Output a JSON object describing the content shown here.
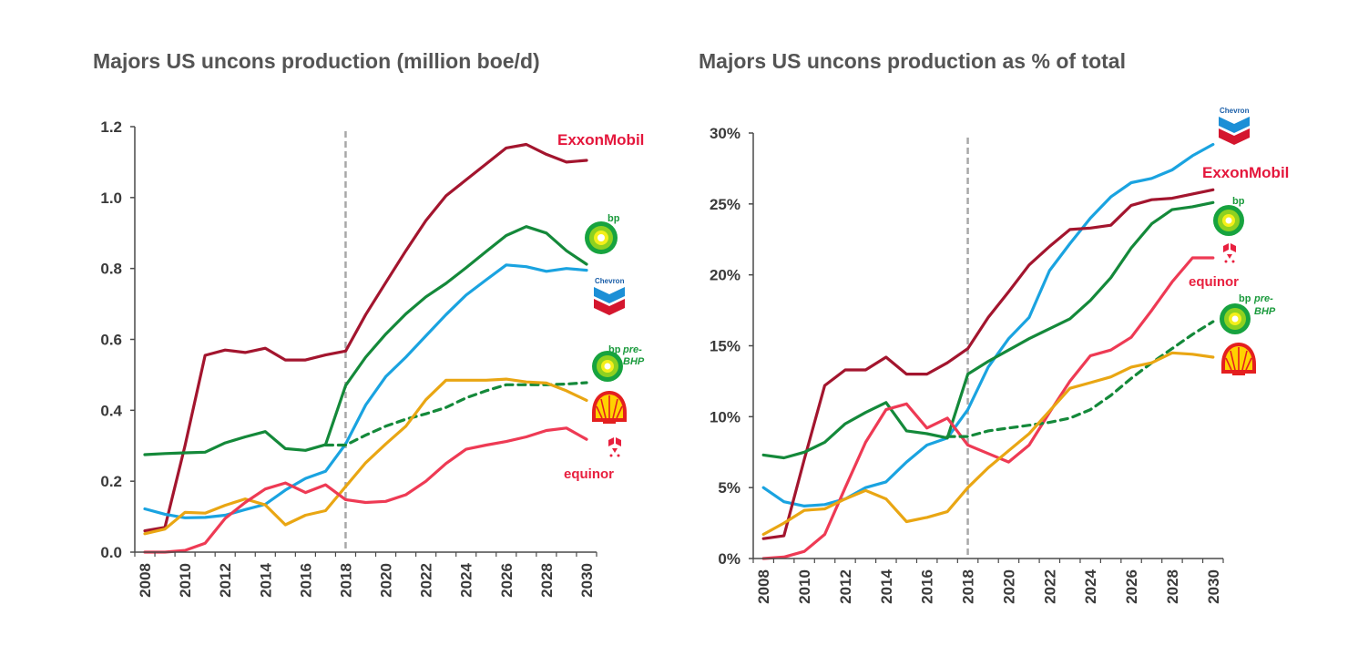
{
  "chart_data": [
    {
      "type": "line",
      "title": "Majors US uncons production (million boe/d)",
      "xlabel": "",
      "ylabel": "",
      "x": [
        2008,
        2009,
        2010,
        2011,
        2012,
        2013,
        2014,
        2015,
        2016,
        2017,
        2018,
        2019,
        2020,
        2021,
        2022,
        2023,
        2024,
        2025,
        2026,
        2027,
        2028,
        2029,
        2030
      ],
      "xticks": [
        "2008",
        "2010",
        "2012",
        "2014",
        "2016",
        "2018",
        "2020",
        "2022",
        "2024",
        "2026",
        "2028",
        "2030"
      ],
      "ylim": [
        0,
        1.2
      ],
      "yticks": [
        "0.0",
        "0.2",
        "0.4",
        "0.6",
        "0.8",
        "1.0",
        "1.2"
      ],
      "forecast_start": 2018,
      "series": [
        {
          "name": "ExxonMobil",
          "color": "#a3152e",
          "dashed": false,
          "values": [
            0.06,
            0.07,
            0.3,
            0.555,
            0.57,
            0.563,
            0.575,
            0.542,
            0.542,
            0.556,
            0.567,
            0.67,
            0.76,
            0.85,
            0.935,
            1.005,
            1.05,
            1.095,
            1.14,
            1.15,
            1.122,
            1.1,
            1.105
          ]
        },
        {
          "name": "bp",
          "color": "#14893a",
          "dashed": false,
          "values": [
            0.275,
            0.278,
            0.28,
            0.282,
            0.308,
            0.325,
            0.34,
            0.292,
            0.287,
            0.303,
            0.47,
            0.55,
            0.615,
            0.672,
            0.72,
            0.758,
            0.802,
            0.848,
            0.893,
            0.918,
            0.9,
            0.85,
            0.812
          ]
        },
        {
          "name": "Chevron",
          "color": "#1aa3e0",
          "dashed": false,
          "values": [
            0.122,
            0.107,
            0.097,
            0.098,
            0.104,
            0.12,
            0.135,
            0.175,
            0.208,
            0.228,
            0.305,
            0.415,
            0.495,
            0.55,
            0.61,
            0.67,
            0.725,
            0.768,
            0.81,
            0.805,
            0.792,
            0.8,
            0.795
          ]
        },
        {
          "name": "bp pre-BHP",
          "color": "#14893a",
          "dashed": true,
          "values": [
            null,
            null,
            null,
            null,
            null,
            null,
            null,
            null,
            null,
            0.302,
            0.302,
            0.33,
            0.355,
            0.375,
            0.39,
            0.408,
            0.435,
            0.455,
            0.472,
            0.472,
            0.472,
            0.474,
            0.478
          ]
        },
        {
          "name": "Shell",
          "color": "#e9a613",
          "dashed": false,
          "values": [
            0.052,
            0.065,
            0.112,
            0.11,
            0.132,
            0.15,
            0.133,
            0.077,
            0.104,
            0.117,
            0.185,
            0.252,
            0.305,
            0.355,
            0.43,
            0.485,
            0.485,
            0.485,
            0.488,
            0.48,
            0.477,
            0.455,
            0.428
          ]
        },
        {
          "name": "equinor",
          "color": "#ee3a54",
          "dashed": false,
          "values": [
            0.0,
            0.0,
            0.005,
            0.025,
            0.095,
            0.14,
            0.178,
            0.195,
            0.168,
            0.19,
            0.148,
            0.14,
            0.143,
            0.162,
            0.2,
            0.25,
            0.29,
            0.302,
            0.312,
            0.325,
            0.343,
            0.35,
            0.318
          ]
        }
      ]
    },
    {
      "type": "line",
      "title": "Majors US uncons production as % of total",
      "xlabel": "",
      "ylabel": "",
      "x": [
        2008,
        2009,
        2010,
        2011,
        2012,
        2013,
        2014,
        2015,
        2016,
        2017,
        2018,
        2019,
        2020,
        2021,
        2022,
        2023,
        2024,
        2025,
        2026,
        2027,
        2028,
        2029,
        2030
      ],
      "xticks": [
        "2008",
        "2010",
        "2012",
        "2014",
        "2016",
        "2018",
        "2020",
        "2022",
        "2024",
        "2026",
        "2028",
        "2030"
      ],
      "ylim": [
        0,
        30
      ],
      "yticks": [
        "0%",
        "5%",
        "10%",
        "15%",
        "20%",
        "25%",
        "30%"
      ],
      "forecast_start": 2018,
      "series": [
        {
          "name": "Chevron",
          "color": "#1aa3e0",
          "dashed": false,
          "values": [
            5.0,
            4.0,
            3.7,
            3.8,
            4.2,
            5.0,
            5.4,
            6.8,
            8.0,
            8.5,
            10.5,
            13.5,
            15.5,
            17.0,
            20.3,
            22.2,
            24.0,
            25.5,
            26.5,
            26.8,
            27.4,
            28.4,
            29.2
          ]
        },
        {
          "name": "ExxonMobil",
          "color": "#a3152e",
          "dashed": false,
          "values": [
            1.4,
            1.6,
            7.0,
            12.2,
            13.3,
            13.3,
            14.2,
            13.0,
            13.0,
            13.8,
            14.8,
            17.0,
            18.8,
            20.7,
            22.0,
            23.2,
            23.3,
            23.5,
            24.9,
            25.3,
            25.4,
            25.7,
            26.0
          ]
        },
        {
          "name": "bp",
          "color": "#14893a",
          "dashed": false,
          "values": [
            7.3,
            7.1,
            7.5,
            8.2,
            9.5,
            10.3,
            11.0,
            9.0,
            8.8,
            8.5,
            13.0,
            13.9,
            14.7,
            15.5,
            16.2,
            16.9,
            18.2,
            19.8,
            21.9,
            23.6,
            24.6,
            24.8,
            25.1
          ]
        },
        {
          "name": "equinor",
          "color": "#ee3a54",
          "dashed": false,
          "values": [
            0.0,
            0.1,
            0.5,
            1.7,
            5.0,
            8.2,
            10.5,
            10.9,
            9.2,
            9.9,
            8.0,
            7.4,
            6.8,
            8.0,
            10.3,
            12.5,
            14.3,
            14.7,
            15.6,
            17.5,
            19.5,
            21.2,
            21.2
          ]
        },
        {
          "name": "bp pre-BHP",
          "color": "#14893a",
          "dashed": true,
          "values": [
            null,
            null,
            null,
            null,
            null,
            null,
            null,
            null,
            null,
            8.6,
            8.6,
            9.0,
            9.2,
            9.4,
            9.6,
            9.9,
            10.5,
            11.5,
            12.7,
            13.8,
            14.8,
            15.8,
            16.7
          ]
        },
        {
          "name": "Shell",
          "color": "#e9a613",
          "dashed": false,
          "values": [
            1.7,
            2.5,
            3.4,
            3.5,
            4.2,
            4.8,
            4.2,
            2.6,
            2.9,
            3.3,
            5.0,
            6.4,
            7.6,
            8.8,
            10.4,
            12.0,
            12.4,
            12.8,
            13.5,
            13.8,
            14.5,
            14.4,
            14.2
          ]
        }
      ]
    }
  ],
  "logos": {
    "left": {
      "exxonmobil": "ExxonMobil",
      "bp": "bp",
      "chevron": "Chevron",
      "bp_pre": "bp",
      "bp_pre_label_1": "pre-",
      "bp_pre_label_2": "BHP",
      "equinor": "equinor"
    },
    "right": {
      "chevron": "Chevron",
      "exxonmobil": "ExxonMobil",
      "bp": "bp",
      "equinor": "equinor",
      "bp_pre": "bp",
      "bp_pre_label_1": "pre-",
      "bp_pre_label_2": "BHP"
    }
  },
  "colors": {
    "exxon": "#a3152e",
    "bp": "#14893a",
    "chevron": "#1aa3e0",
    "shell": "#e9a613",
    "equinor": "#ee3a54",
    "axis": "#4a4a4a",
    "forecast_line": "#a8a8a8"
  }
}
